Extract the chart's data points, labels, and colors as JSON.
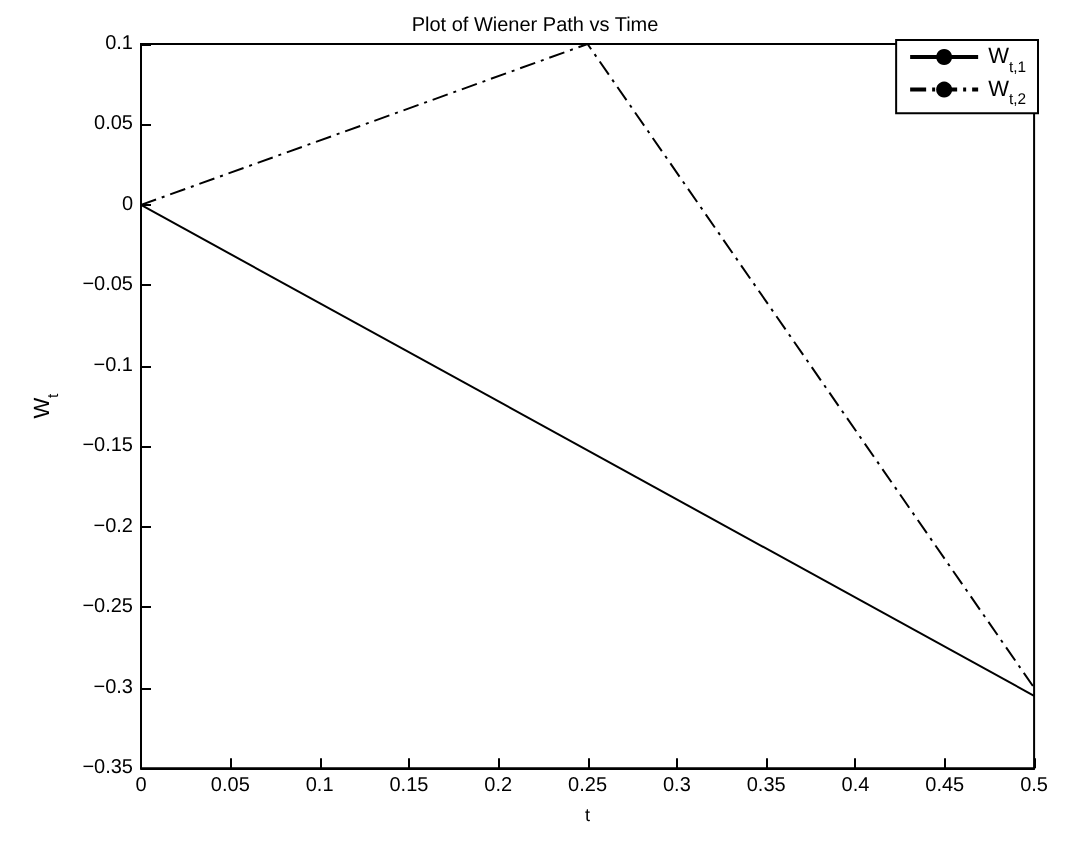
{
  "chart_data": {
    "type": "line",
    "title": "Plot of Wiener Path vs Time",
    "xlabel": "t",
    "ylabel": "W$_{t}$",
    "xlim": [
      0,
      0.5
    ],
    "xticks": [
      0,
      0.05,
      0.1,
      0.15,
      0.2,
      0.25,
      0.3,
      0.35,
      0.4,
      0.45,
      0.5
    ],
    "ylim": [
      -0.35,
      0.1
    ],
    "yticks": [
      -0.35,
      -0.3,
      -0.25,
      -0.2,
      -0.15,
      -0.1,
      -0.05,
      0,
      0.05,
      0.1
    ],
    "grid": false,
    "legend": "top right",
    "marker": "none",
    "series": [
      {
        "name": "W$_{t,1}$",
        "color": "#000000",
        "line_style": "solid",
        "x": [
          0,
          0.5
        ],
        "values": [
          0,
          -0.305
        ]
      },
      {
        "name": "W$_{t,2}$",
        "color": "#000000",
        "line_style": "dashdot",
        "x": [
          0,
          0.25,
          0.5
        ],
        "values": [
          0,
          0.1,
          -0.3
        ]
      }
    ]
  }
}
